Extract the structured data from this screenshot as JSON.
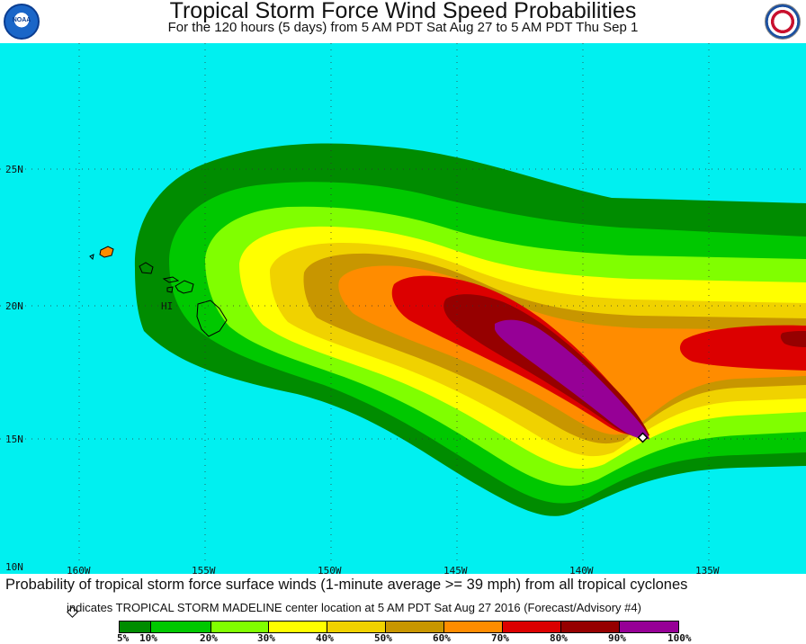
{
  "header": {
    "title": "Tropical Storm Force Wind Speed Probabilities",
    "subtitle": "For the 120 hours (5 days) from 5 AM PDT Sat Aug 27 to 5 AM PDT Thu Sep 1",
    "left_logo": "noaa-logo",
    "left_logo_text": "NOAA",
    "right_logo": "national-weather-service-logo"
  },
  "map": {
    "latitude_labels": [
      "25N",
      "20N",
      "15N",
      "10N"
    ],
    "longitude_labels": [
      "160W",
      "155W",
      "150W",
      "145W",
      "140W",
      "135W"
    ],
    "region_label": "HI",
    "storm_marker": "TROPICAL STORM MADELINE center location",
    "ocean_color": "#00f0f0",
    "island_color": "#000000",
    "probability_colors": {
      "5": "#008c00",
      "10": "#00c800",
      "20": "#80ff00",
      "30": "#ffff00",
      "40": "#f0d200",
      "50": "#c89600",
      "60": "#ff8c00",
      "70": "#dc0000",
      "80": "#960000",
      "90": "#960096"
    }
  },
  "caption": "Probability of tropical storm force surface winds (1-minute average >= 39 mph) from all tropical cyclones",
  "legend": {
    "note": "indicates TROPICAL STORM MADELINE center location at 5 AM PDT Sat Aug 27 2016 (Forecast/Advisory #4)",
    "bins": [
      {
        "color": "#008c00"
      },
      {
        "color": "#00c800"
      },
      {
        "color": "#80ff00"
      },
      {
        "color": "#ffff00"
      },
      {
        "color": "#f0d200"
      },
      {
        "color": "#c89600"
      },
      {
        "color": "#ff8c00"
      },
      {
        "color": "#dc0000"
      },
      {
        "color": "#960000"
      },
      {
        "color": "#960096"
      }
    ],
    "labels": [
      "5%",
      "10%",
      "20%",
      "30%",
      "40%",
      "50%",
      "60%",
      "70%",
      "80%",
      "90%",
      "100%"
    ]
  }
}
